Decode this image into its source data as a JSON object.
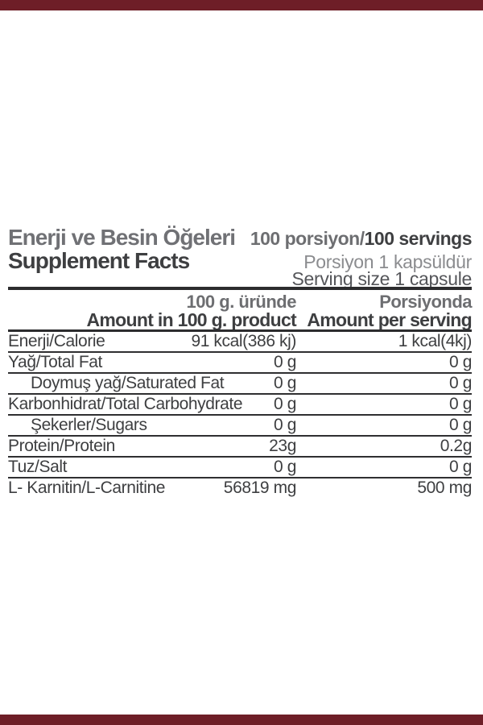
{
  "colors": {
    "accent_bar": "#6e1e27",
    "title_gray": "#707175",
    "dark_text": "#3e3f41"
  },
  "header": {
    "title_tr": "Enerji ve Besin Öğeleri",
    "title_en": "Supplement Facts",
    "servings_tr": "100 porsiyon/",
    "servings_en": "100 servings",
    "serving_size_tr": "Porsiyon 1 kapsüldür",
    "serving_size_en": "Serving size 1 capsule"
  },
  "table": {
    "col_headers": {
      "per100g_tr": "100 g. üründe",
      "per100g_en": "Amount in 100 g. product",
      "per_serving_tr": "Porsiyonda",
      "per_serving_en": "Amount per serving"
    },
    "rows": [
      {
        "label": "Enerji/Calorie",
        "per100g": "91 kcal(386 kj)",
        "perServing": "1 kcal(4kj)",
        "indent": false
      },
      {
        "label": "Yağ/Total Fat",
        "per100g": "0 g",
        "perServing": "0 g",
        "indent": false
      },
      {
        "label": "Doymuş yağ/Saturated Fat",
        "per100g": "0 g",
        "perServing": "0 g",
        "indent": true
      },
      {
        "label": "Karbonhidrat/Total Carbohydrate",
        "per100g": "0 g",
        "perServing": "0 g",
        "indent": false
      },
      {
        "label": "Şekerler/Sugars",
        "per100g": "0 g",
        "perServing": "0 g",
        "indent": true
      },
      {
        "label": "Protein/Protein",
        "per100g": "23g",
        "perServing": "0.2g",
        "indent": false
      },
      {
        "label": "Tuz/Salt",
        "per100g": "0 g",
        "perServing": "0 g",
        "indent": false
      },
      {
        "label": "L- Karnitin/L-Carnitine",
        "per100g": "56819 mg",
        "perServing": "500 mg",
        "indent": false
      }
    ]
  }
}
